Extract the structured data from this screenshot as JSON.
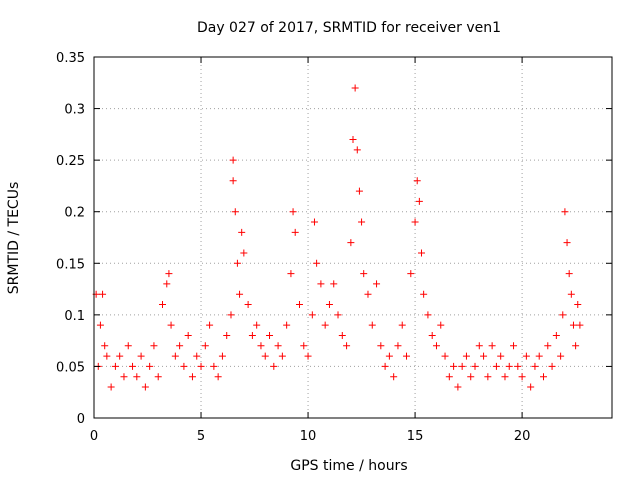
{
  "chart_data": {
    "type": "scatter",
    "title": "Day 027 of 2017, SRMTID for receiver ven1",
    "xlabel": "GPS time / hours",
    "ylabel": "SRMTID / TECUs",
    "xlim": [
      0,
      24.2
    ],
    "ylim": [
      0,
      0.35
    ],
    "xticks": [
      0,
      5,
      10,
      15,
      20
    ],
    "xtick_labels": [
      "0",
      "5",
      "10",
      "15",
      "20"
    ],
    "yticks": [
      0,
      0.05,
      0.1,
      0.15,
      0.2,
      0.25,
      0.3,
      0.35
    ],
    "ytick_labels": [
      "0",
      "0.05",
      "0.1",
      "0.15",
      "0.2",
      "0.25",
      "0.3",
      "0.35"
    ],
    "grid": true,
    "marker": "+",
    "color": "#ff0000",
    "series": [
      {
        "name": "SRMTID",
        "x": [
          0.1,
          0.2,
          0.3,
          0.4,
          0.5,
          0.6,
          0.8,
          1.0,
          1.2,
          1.4,
          1.6,
          1.8,
          2.0,
          2.2,
          2.4,
          2.6,
          2.8,
          3.0,
          3.2,
          3.4,
          3.5,
          3.6,
          3.8,
          4.0,
          4.2,
          4.4,
          4.6,
          4.8,
          5.0,
          5.2,
          5.4,
          5.6,
          5.8,
          6.0,
          6.2,
          6.4,
          6.5,
          6.5,
          6.6,
          6.7,
          6.8,
          6.9,
          7.0,
          7.2,
          7.4,
          7.6,
          7.8,
          8.0,
          8.2,
          8.4,
          8.6,
          8.8,
          9.0,
          9.2,
          9.3,
          9.4,
          9.6,
          9.8,
          10.0,
          10.2,
          10.3,
          10.4,
          10.6,
          10.8,
          11.0,
          11.2,
          11.4,
          11.6,
          11.8,
          12.0,
          12.1,
          12.2,
          12.3,
          12.4,
          12.5,
          12.6,
          12.8,
          13.0,
          13.2,
          13.4,
          13.6,
          13.8,
          14.0,
          14.2,
          14.4,
          14.6,
          14.8,
          15.0,
          15.1,
          15.2,
          15.3,
          15.4,
          15.6,
          15.8,
          16.0,
          16.2,
          16.4,
          16.6,
          16.8,
          17.0,
          17.2,
          17.4,
          17.6,
          17.8,
          18.0,
          18.2,
          18.4,
          18.6,
          18.8,
          19.0,
          19.2,
          19.4,
          19.6,
          19.8,
          20.0,
          20.2,
          20.4,
          20.6,
          20.8,
          21.0,
          21.2,
          21.4,
          21.6,
          21.8,
          21.9,
          22.0,
          22.1,
          22.2,
          22.3,
          22.4,
          22.5,
          22.6,
          22.7
        ],
        "y": [
          0.12,
          0.05,
          0.09,
          0.12,
          0.07,
          0.06,
          0.03,
          0.05,
          0.06,
          0.04,
          0.07,
          0.05,
          0.04,
          0.06,
          0.03,
          0.05,
          0.07,
          0.04,
          0.11,
          0.13,
          0.14,
          0.09,
          0.06,
          0.07,
          0.05,
          0.08,
          0.04,
          0.06,
          0.05,
          0.07,
          0.09,
          0.05,
          0.04,
          0.06,
          0.08,
          0.1,
          0.25,
          0.23,
          0.2,
          0.15,
          0.12,
          0.18,
          0.16,
          0.11,
          0.08,
          0.09,
          0.07,
          0.06,
          0.08,
          0.05,
          0.07,
          0.06,
          0.09,
          0.14,
          0.2,
          0.18,
          0.11,
          0.07,
          0.06,
          0.1,
          0.19,
          0.15,
          0.13,
          0.09,
          0.11,
          0.13,
          0.1,
          0.08,
          0.07,
          0.17,
          0.27,
          0.32,
          0.26,
          0.22,
          0.19,
          0.14,
          0.12,
          0.09,
          0.13,
          0.07,
          0.05,
          0.06,
          0.04,
          0.07,
          0.09,
          0.06,
          0.14,
          0.19,
          0.23,
          0.21,
          0.16,
          0.12,
          0.1,
          0.08,
          0.07,
          0.09,
          0.06,
          0.04,
          0.05,
          0.03,
          0.05,
          0.06,
          0.04,
          0.05,
          0.07,
          0.06,
          0.04,
          0.07,
          0.05,
          0.06,
          0.04,
          0.05,
          0.07,
          0.05,
          0.04,
          0.06,
          0.03,
          0.05,
          0.06,
          0.04,
          0.07,
          0.05,
          0.08,
          0.06,
          0.1,
          0.2,
          0.17,
          0.14,
          0.12,
          0.09,
          0.07,
          0.11,
          0.09
        ]
      }
    ]
  }
}
